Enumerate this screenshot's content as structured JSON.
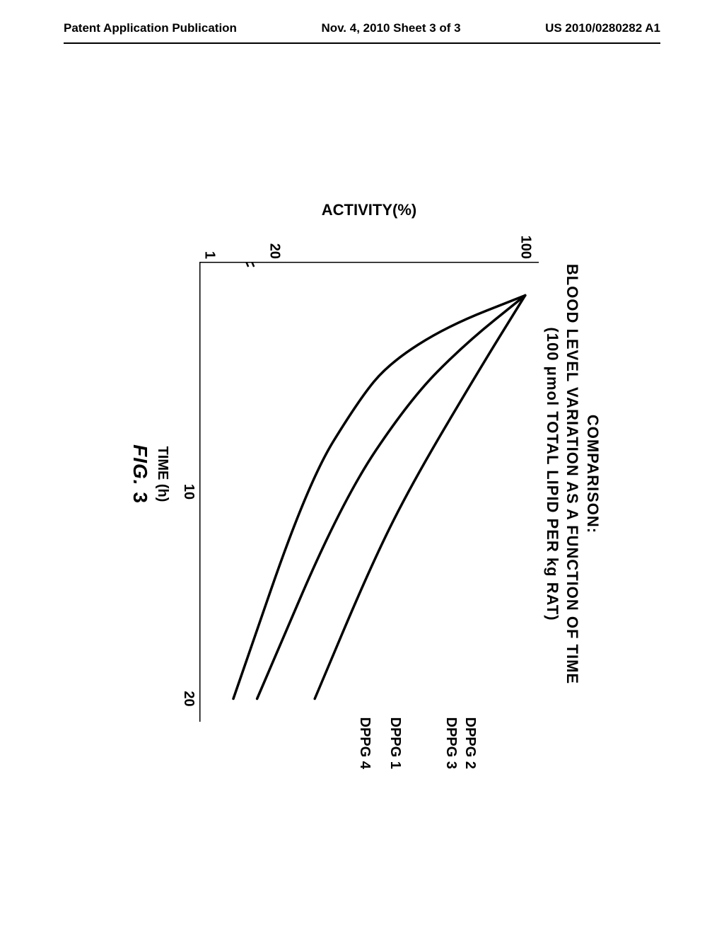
{
  "header": {
    "left": "Patent Application Publication",
    "center": "Nov. 4, 2010  Sheet 3 of 3",
    "right": "US 2010/0280282 A1"
  },
  "chart": {
    "type": "line",
    "title_line1": "COMPARISON:",
    "title_line2": "BLOOD LEVEL VARIATION AS A FUNCTION OF TIME",
    "title_line3": "(100 μmol TOTAL LIPID PER kg RAT)",
    "title_fontsize": 22,
    "y_label": "ACTIVITY(%)",
    "x_label": "TIME (h)",
    "label_fontsize": 22,
    "y_ticks": [
      {
        "value": 100,
        "pos_pct": 4
      },
      {
        "value": 20,
        "pos_pct": 78
      }
    ],
    "y_minor_ticks_pos_pct": [
      13.25,
      22.5,
      31.75,
      41,
      50.25,
      59.5,
      68.75
    ],
    "y_break_pos_pct": 86,
    "x_ticks": [
      {
        "value": 10,
        "pos_pct": 50
      },
      {
        "value": 20,
        "pos_pct": 95
      }
    ],
    "background_color": "#ffffff",
    "axis_color": "#000000",
    "line_width": 3.5,
    "line_color": "#000000",
    "xlim": [
      0,
      21
    ],
    "axis_stroke_width": 3,
    "series": [
      {
        "name": "DPPG 2",
        "label": "DPPG 2",
        "label_x_pct": 99,
        "label_y_pct": 18,
        "points_pct": [
          [
            7.3,
            4
          ],
          [
            24,
            18
          ],
          [
            49,
            38
          ],
          [
            67,
            50
          ],
          [
            95,
            66
          ]
        ]
      },
      {
        "name": "DPPG 3",
        "label": "DPPG 3",
        "label_x_pct": 99,
        "label_y_pct": 23.5,
        "points_pct": [
          [
            7.3,
            4
          ],
          [
            24,
            18
          ],
          [
            49,
            38
          ],
          [
            67,
            50
          ],
          [
            95,
            66
          ]
        ]
      },
      {
        "name": "DPPG 1",
        "label": "DPPG 1",
        "label_x_pct": 99,
        "label_y_pct": 40,
        "points_pct": [
          [
            7.3,
            4
          ],
          [
            18,
            22
          ],
          [
            30,
            38
          ],
          [
            52,
            58
          ],
          [
            95,
            83
          ]
        ]
      },
      {
        "name": "DPPG 4",
        "label": "DPPG 4",
        "label_x_pct": 99,
        "label_y_pct": 49,
        "points_pct": [
          [
            7.3,
            4
          ],
          [
            14,
            27
          ],
          [
            22,
            44
          ],
          [
            30,
            53
          ],
          [
            48,
            68
          ],
          [
            95,
            90
          ]
        ]
      }
    ]
  },
  "figure_caption": {
    "prefix": "FIG.",
    "number": "3"
  }
}
